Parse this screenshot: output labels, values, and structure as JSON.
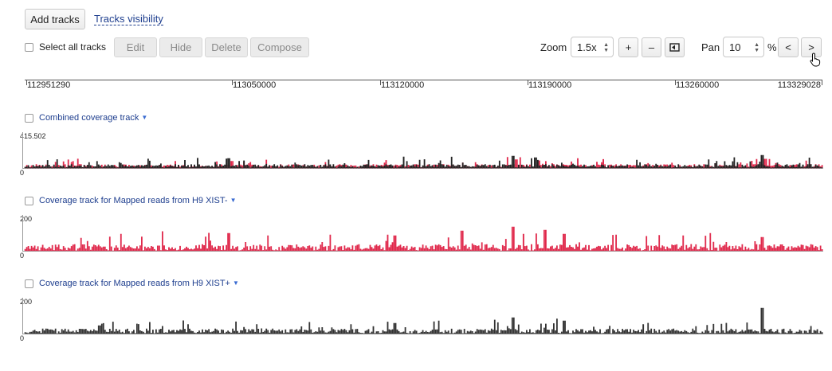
{
  "toolbar": {
    "add_tracks_label": "Add tracks",
    "tracks_visibility_label": "Tracks visibility",
    "select_all_label": "Select all tracks",
    "edit_label": "Edit",
    "hide_label": "Hide",
    "delete_label": "Delete",
    "compose_label": "Compose",
    "zoom_label": "Zoom",
    "zoom_value": "1.5x",
    "zoom_in_label": "+",
    "zoom_out_label": "–",
    "pan_label": "Pan",
    "pan_value": "10",
    "pan_unit": "%",
    "pan_left_label": "<",
    "pan_right_label": ">"
  },
  "ruler": {
    "labels": [
      "112951290",
      "113050000",
      "113120000",
      "113190000",
      "113260000",
      "113329028"
    ]
  },
  "tracks": [
    {
      "title": "Combined coverage track",
      "max_label": "415.502",
      "min_label": "0",
      "color": "#222222",
      "secondary_color": "#e0284b"
    },
    {
      "title": "Coverage track for Mapped reads from H9 XIST-",
      "max_label": "200",
      "min_label": "0",
      "color": "#e0284b"
    },
    {
      "title": "Coverage track for Mapped reads from H9 XIST+",
      "max_label": "200",
      "min_label": "0",
      "color": "#333333"
    }
  ],
  "colors": {
    "link": "#1f3f8f",
    "caret": "#3a6bd1",
    "red_coverage": "#e0284b",
    "dark_coverage": "#333333"
  }
}
